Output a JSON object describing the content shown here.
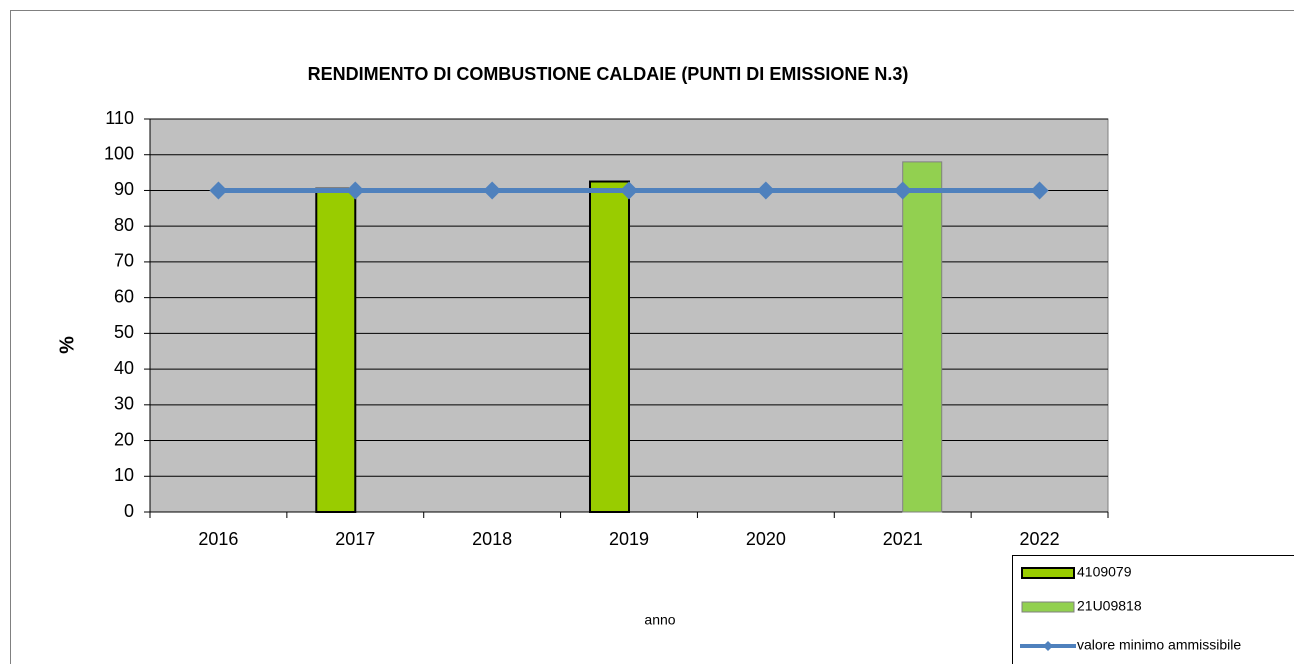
{
  "chart_data": {
    "type": "bar",
    "title": "RENDIMENTO DI COMBUSTIONE CALDAIE (PUNTI DI EMISSIONE N.3)",
    "x_label": "anno",
    "y_label": "%",
    "categories": [
      "2016",
      "2017",
      "2018",
      "2019",
      "2020",
      "2021",
      "2022"
    ],
    "series": [
      {
        "name": "4109079",
        "type": "bar",
        "color": "#99cc00",
        "values": [
          null,
          90.5,
          null,
          92.5,
          null,
          null,
          null
        ]
      },
      {
        "name": "21U09818",
        "type": "bar",
        "color": "#92d050",
        "values": [
          null,
          null,
          null,
          null,
          null,
          98,
          null
        ]
      },
      {
        "name": "valore minimo ammissibile",
        "type": "line",
        "color": "#4f81bd",
        "values": [
          90,
          90,
          90,
          90,
          90,
          90,
          90
        ]
      }
    ],
    "ylim": [
      0,
      110
    ],
    "yticks": [
      0,
      10,
      20,
      30,
      40,
      50,
      60,
      70,
      80,
      90,
      100,
      110
    ],
    "grid": true,
    "legend": "bottom-right"
  }
}
